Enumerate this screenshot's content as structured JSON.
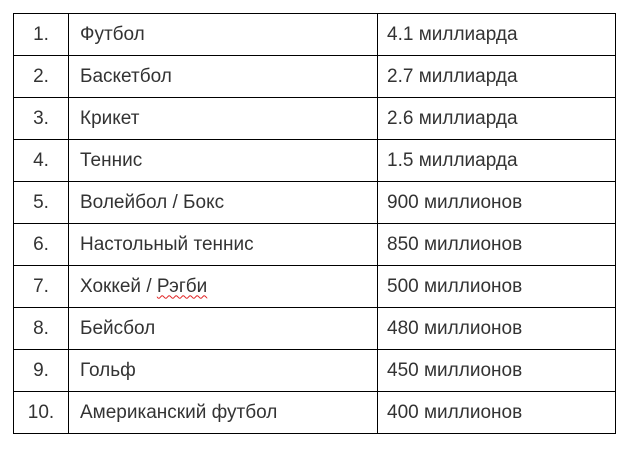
{
  "colors": {
    "background": "#ffffff",
    "text": "#333333",
    "border": "#000000",
    "spellcheck_underline": "#e02020"
  },
  "table": {
    "description": "sports-ranked-by-audience",
    "rows": [
      {
        "rank": "1.",
        "name": "Футбол",
        "name_parts": [
          {
            "text": "Футбол",
            "misspelled": false
          }
        ],
        "value": "4.1 миллиарда"
      },
      {
        "rank": "2.",
        "name": "Баскетбол",
        "name_parts": [
          {
            "text": "Баскетбол",
            "misspelled": false
          }
        ],
        "value": "2.7 миллиарда"
      },
      {
        "rank": "3.",
        "name": "Крикет",
        "name_parts": [
          {
            "text": "Крикет",
            "misspelled": false
          }
        ],
        "value": "2.6 миллиарда"
      },
      {
        "rank": "4.",
        "name": "Теннис",
        "name_parts": [
          {
            "text": "Теннис",
            "misspelled": false
          }
        ],
        "value": "1.5 миллиарда"
      },
      {
        "rank": "5.",
        "name": "Волейбол / Бокс",
        "name_parts": [
          {
            "text": "Волейбол / Бокс",
            "misspelled": false
          }
        ],
        "value": "900 миллионов"
      },
      {
        "rank": "6.",
        "name": "Настольный теннис",
        "name_parts": [
          {
            "text": "Настольный теннис",
            "misspelled": false
          }
        ],
        "value": "850 миллионов"
      },
      {
        "rank": "7.",
        "name": "Хоккей / Рэгби",
        "name_parts": [
          {
            "text": "Хоккей / ",
            "misspelled": false
          },
          {
            "text": "Рэгби",
            "misspelled": true
          }
        ],
        "value": "500 миллионов"
      },
      {
        "rank": "8.",
        "name": "Бейсбол",
        "name_parts": [
          {
            "text": "Бейсбол",
            "misspelled": false
          }
        ],
        "value": "480 миллионов"
      },
      {
        "rank": "9.",
        "name": "Гольф",
        "name_parts": [
          {
            "text": "Гольф",
            "misspelled": false
          }
        ],
        "value": "450 миллионов"
      },
      {
        "rank": "10.",
        "name": "Американский футбол",
        "name_parts": [
          {
            "text": "Американский футбол",
            "misspelled": false
          }
        ],
        "value": "400 миллионов"
      }
    ]
  }
}
